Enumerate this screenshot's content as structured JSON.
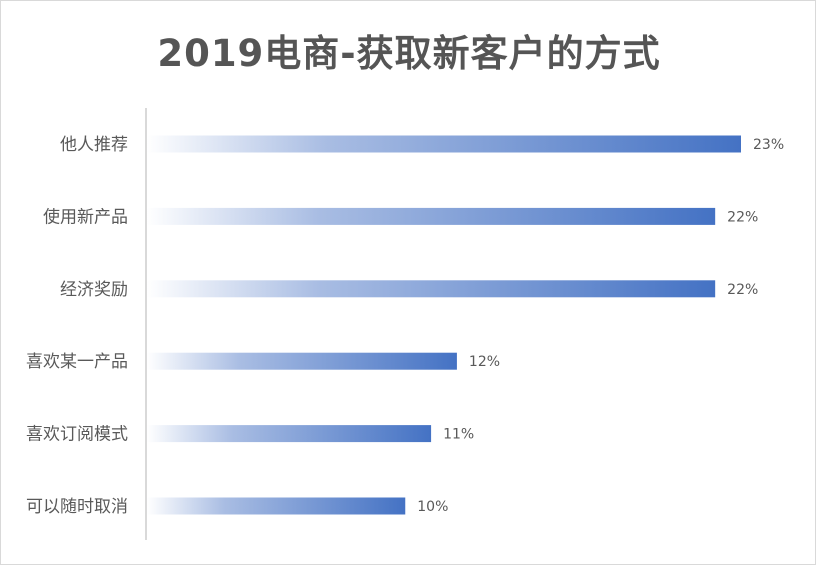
{
  "chart_data": {
    "type": "bar",
    "orientation": "horizontal",
    "title": "2019电商-获取新客户的方式",
    "categories": [
      "他人推荐",
      "使用新产品",
      "经济奖励",
      "喜欢某一产品",
      "喜欢订阅模式",
      "可以随时取消"
    ],
    "values": [
      23,
      22,
      22,
      12,
      11,
      10
    ],
    "data_labels": [
      "23%",
      "22%",
      "22%",
      "12%",
      "11%",
      "10%"
    ],
    "unit": "%",
    "xlim": [
      0,
      23
    ],
    "grid": false,
    "legend": "none",
    "bar_gradient": {
      "start": "#ffffff",
      "end": "#4472c4"
    },
    "axis_color": "#d9d9d9",
    "label_color": "#595959"
  }
}
